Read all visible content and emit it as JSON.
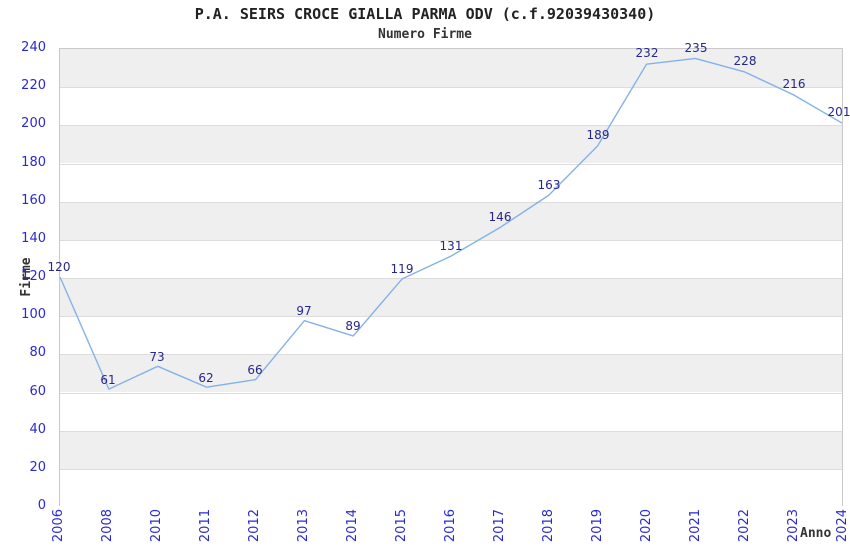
{
  "chart_data": {
    "type": "line",
    "title": "P.A. SEIRS CROCE GIALLA PARMA ODV (c.f.92039430340)",
    "subtitle": "Numero Firme",
    "xlabel": "Anno",
    "ylabel": "Firme",
    "categories": [
      "2006",
      "2008",
      "2010",
      "2011",
      "2012",
      "2013",
      "2014",
      "2015",
      "2016",
      "2017",
      "2018",
      "2019",
      "2020",
      "2021",
      "2022",
      "2023",
      "2024"
    ],
    "values": [
      120,
      61,
      73,
      62,
      66,
      97,
      89,
      119,
      131,
      146,
      163,
      189,
      232,
      235,
      228,
      216,
      201
    ],
    "ylim": [
      0,
      240
    ],
    "ytick_step": 20,
    "grid": "horizontal",
    "background_bands": "alternating",
    "legend": "none",
    "point_labels": true,
    "colors": {
      "line": "#85b2e6",
      "point_label": "#26268e",
      "tick_label": "#2a2ad0",
      "axis_label": "#333333",
      "band_gray": "#efefef",
      "band_white": "#ffffff",
      "gridline": "#dcdcdc",
      "plot_border": "#c9c9c9",
      "title": "#222222"
    }
  }
}
